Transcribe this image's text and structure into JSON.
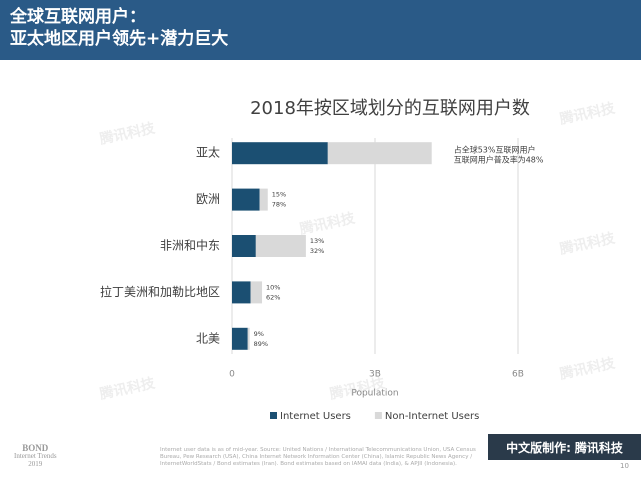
{
  "header": {
    "lines": [
      "全球互联网用户：",
      "亚太地区用户领先+潜力巨大"
    ]
  },
  "chart_data": {
    "type": "stacked-barh",
    "title": "2018年按区域划分的互联网用户数",
    "categories": [
      "亚太",
      "欧洲",
      "非洲和中东",
      "拉丁美洲和加勒比地区",
      "北美"
    ],
    "series": [
      {
        "name": "Internet Users",
        "color": "#1b4f72",
        "values": [
          2.01,
          0.58,
          0.5,
          0.39,
          0.33
        ]
      },
      {
        "name": "Non-Internet Users",
        "color": "#d9d9d9",
        "values": [
          2.18,
          0.17,
          1.05,
          0.24,
          0.04
        ]
      }
    ],
    "annotations": [
      [
        "占全球53%互联网用户",
        "互联网用户普及率为48%"
      ],
      [
        "15%",
        "78%"
      ],
      [
        "13%",
        "32%"
      ],
      [
        "10%",
        "62%"
      ],
      [
        "9%",
        "89%"
      ]
    ],
    "xlabel": "Population",
    "xlim": [
      0,
      6
    ],
    "xticks": [
      0,
      {
        "value": 3,
        "label": "3B"
      },
      {
        "value": 6,
        "label": "6B"
      }
    ],
    "grid": true,
    "legend": "bottom"
  },
  "watermark": "腾讯科技",
  "footer": {
    "brand": [
      "BOND",
      "Internet Trends",
      "2019"
    ],
    "source": "Internet user data is as of mid-year. Source: United Nations / International Telecommunications Union, USA Census Bureau, Pew Research (USA), China Internet Network Information Center (China), Islamic Republic News Agency / InternetWorldStats / Bond estimates (Iran). Bond estimates based on IAMAI data (India), & APJII (Indonesia).",
    "credit_label": "中文版制作:",
    "credit": "腾讯科技",
    "page": "10"
  }
}
